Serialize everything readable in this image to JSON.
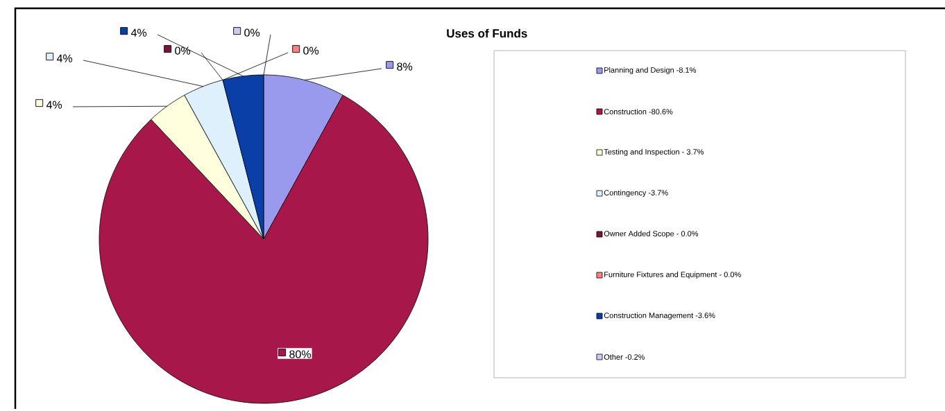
{
  "chart_data": {
    "type": "pie",
    "title": "Uses of Funds",
    "categories": [
      "Planning and Design -8.1%",
      "Construction -80.6%",
      "Testing and Inspection - 3.7%",
      "Contingency -3.7%",
      "Owner Added Scope - 0.0%",
      "Furniture Fixtures and Equipment - 0.0%",
      "Construction Management -3.6%",
      "Other -0.2%"
    ],
    "values": [
      8,
      80,
      4,
      4,
      0,
      0,
      4,
      0
    ],
    "value_labels": [
      "8%",
      "80%",
      "4%",
      "4%",
      "0%",
      "0%",
      "4%",
      "0%"
    ],
    "colors": [
      "#9999ee",
      "#a8174a",
      "#ffffdd",
      "#ddf0fb",
      "#7a1540",
      "#ff8080",
      "#0a3fa8",
      "#ccccf0"
    ],
    "legend": "right"
  }
}
